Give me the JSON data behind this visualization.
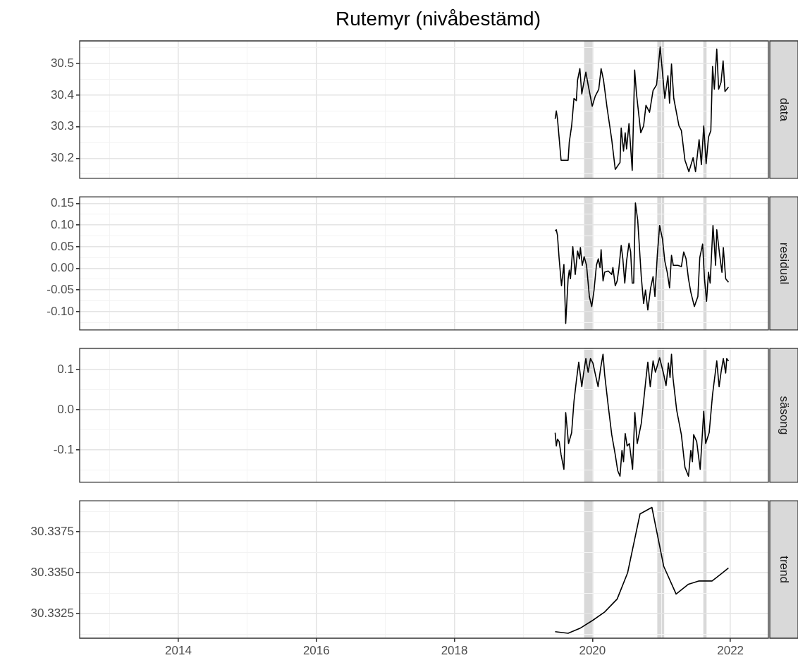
{
  "chart_data": [
    {
      "type": "line",
      "title": "Rutemyr (nivåbestämd)",
      "y2label": "data",
      "marker": "none",
      "grid": true,
      "tick_labels": "y",
      "xlim": [
        2012.57,
        2022.55
      ],
      "xticks": [
        {
          "value": 2013,
          "label": null
        },
        2014,
        {
          "value": 2015,
          "label": null
        },
        2016,
        {
          "value": 2017,
          "label": null
        },
        2018,
        {
          "value": 2019,
          "label": null
        },
        2020,
        {
          "value": 2021,
          "label": null
        },
        2022
      ],
      "ylim": [
        30.137,
        30.572
      ],
      "yticks": [
        {
          "value": 30.15,
          "label": null
        },
        30.2,
        {
          "value": 30.25,
          "label": null
        },
        30.3,
        {
          "value": 30.35,
          "label": null
        },
        30.4,
        {
          "value": 30.45,
          "label": null
        },
        30.5,
        {
          "value": 30.55,
          "label": null
        }
      ],
      "bands": [
        {
          "axis": "x",
          "from": 2019.88,
          "to": 2020.01,
          "color": "#d9d9d9"
        },
        {
          "axis": "x",
          "from": 2020.94,
          "to": 2021.04,
          "color": "#d9d9d9"
        },
        {
          "axis": "x",
          "from": 2021.607,
          "to": 2021.654,
          "color": "#d9d9d9"
        }
      ],
      "series": [
        {
          "color": "#000000",
          "x": [
            2019.46,
            2019.477,
            2019.494,
            2019.546,
            2019.648,
            2019.665,
            2019.699,
            2019.733,
            2019.767,
            2019.785,
            2019.818,
            2019.846,
            2019.87,
            2019.905,
            2019.938,
            2019.997,
            2020.041,
            2020.092,
            2020.126,
            2020.161,
            2020.212,
            2020.28,
            2020.331,
            2020.4,
            2020.417,
            2020.451,
            2020.475,
            2020.495,
            2020.53,
            2020.577,
            2020.612,
            2020.639,
            2020.701,
            2020.742,
            2020.776,
            2020.828,
            2020.879,
            2020.93,
            2020.982,
            2021.049,
            2021.094,
            2021.118,
            2021.146,
            2021.179,
            2021.254,
            2021.289,
            2021.341,
            2021.398,
            2021.459,
            2021.494,
            2021.546,
            2021.579,
            2021.613,
            2021.648,
            2021.682,
            2021.716,
            2021.741,
            2021.767,
            2021.802,
            2021.829,
            2021.864,
            2021.894,
            2021.921,
            2021.972
          ],
          "values": [
            30.325,
            30.35,
            30.325,
            30.194,
            30.194,
            30.252,
            30.303,
            30.39,
            30.383,
            30.448,
            30.484,
            30.404,
            30.433,
            30.473,
            30.433,
            30.365,
            30.397,
            30.419,
            30.484,
            30.448,
            30.361,
            30.259,
            30.165,
            30.187,
            30.296,
            30.223,
            30.281,
            30.23,
            30.31,
            30.162,
            30.48,
            30.404,
            30.281,
            30.303,
            30.368,
            30.346,
            30.415,
            30.433,
            30.553,
            30.39,
            30.462,
            30.375,
            30.499,
            30.39,
            30.303,
            30.288,
            30.194,
            30.158,
            30.202,
            30.158,
            30.259,
            30.18,
            30.303,
            30.183,
            30.267,
            30.288,
            30.491,
            30.419,
            30.546,
            30.419,
            30.441,
            30.509,
            30.412,
            30.426
          ]
        }
      ]
    },
    {
      "type": "line",
      "y2label": "residual",
      "marker": "none",
      "grid": true,
      "tick_labels": "y",
      "xlim": [
        2012.57,
        2022.55
      ],
      "xticks": [
        {
          "value": 2013,
          "label": null
        },
        2014,
        {
          "value": 2015,
          "label": null
        },
        2016,
        {
          "value": 2017,
          "label": null
        },
        2018,
        {
          "value": 2019,
          "label": null
        },
        2020,
        {
          "value": 2021,
          "label": null
        },
        2022
      ],
      "ylim": [
        -0.142,
        0.165
      ],
      "yticks": [
        {
          "value": -0.125,
          "label": null
        },
        {
          "value": -0.1,
          "label": "-0.10"
        },
        {
          "value": -0.075,
          "label": null
        },
        {
          "value": -0.05,
          "label": "-0.05"
        },
        {
          "value": -0.025,
          "label": null
        },
        {
          "value": 0,
          "label": "0.00"
        },
        {
          "value": 0.025,
          "label": null
        },
        {
          "value": 0.05,
          "label": "0.05"
        },
        {
          "value": 0.075,
          "label": null
        },
        {
          "value": 0.1,
          "label": "0.10"
        },
        {
          "value": 0.125,
          "label": null
        },
        0.15
      ],
      "bands": [
        {
          "axis": "x",
          "from": 2019.88,
          "to": 2020.01,
          "color": "#d9d9d9"
        },
        {
          "axis": "x",
          "from": 2020.94,
          "to": 2021.04,
          "color": "#d9d9d9"
        },
        {
          "axis": "x",
          "from": 2021.607,
          "to": 2021.654,
          "color": "#d9d9d9"
        }
      ],
      "series": [
        {
          "color": "#000000",
          "x": [
            2019.46,
            2019.477,
            2019.494,
            2019.518,
            2019.552,
            2019.587,
            2019.613,
            2019.648,
            2019.665,
            2019.682,
            2019.716,
            2019.751,
            2019.785,
            2019.812,
            2019.826,
            2019.853,
            2019.88,
            2019.915,
            2019.956,
            2019.99,
            2020.024,
            2020.058,
            2020.085,
            2020.11,
            2020.126,
            2020.154,
            2020.177,
            2020.229,
            2020.28,
            2020.297,
            2020.331,
            2020.359,
            2020.383,
            2020.417,
            2020.441,
            2020.469,
            2020.495,
            2020.53,
            2020.554,
            2020.577,
            2020.598,
            2020.623,
            2020.656,
            2020.708,
            2020.742,
            2020.769,
            2020.803,
            2020.844,
            2020.879,
            2020.906,
            2020.941,
            2020.974,
            2021.015,
            2021.049,
            2021.084,
            2021.118,
            2021.146,
            2021.172,
            2021.238,
            2021.289,
            2021.323,
            2021.357,
            2021.392,
            2021.426,
            2021.477,
            2021.528,
            2021.556,
            2021.597,
            2021.624,
            2021.654,
            2021.682,
            2021.706,
            2021.747,
            2021.767,
            2021.785,
            2021.802,
            2021.843,
            2021.877,
            2021.897,
            2021.931,
            2021.972
          ],
          "values": [
            0.086,
            0.089,
            0.076,
            0.022,
            -0.04,
            0.009,
            -0.127,
            -0.024,
            -0.004,
            -0.024,
            0.05,
            -0.014,
            0.04,
            0.022,
            0.048,
            0.007,
            0.027,
            0.007,
            -0.065,
            -0.088,
            -0.05,
            0.007,
            0.022,
            0.002,
            0.043,
            -0.029,
            -0.009,
            -0.006,
            -0.014,
            0.002,
            -0.04,
            -0.029,
            -0.001,
            0.053,
            0.022,
            -0.034,
            0.017,
            0.058,
            0.038,
            -0.034,
            -0.034,
            0.151,
            0.112,
            -0.019,
            -0.081,
            -0.05,
            -0.096,
            -0.045,
            -0.019,
            -0.065,
            0.032,
            0.099,
            0.068,
            0.017,
            -0.009,
            -0.045,
            0.03,
            0.007,
            0.007,
            0.004,
            0.038,
            0.022,
            -0.024,
            -0.055,
            -0.088,
            -0.065,
            0.025,
            0.056,
            -0.024,
            -0.076,
            -0.009,
            -0.034,
            0.099,
            0.053,
            0.007,
            0.089,
            0.032,
            -0.009,
            0.048,
            -0.024,
            -0.032
          ]
        }
      ]
    },
    {
      "type": "line",
      "y2label": "säsong",
      "marker": "none",
      "grid": true,
      "tick_labels": "y",
      "xlim": [
        2012.57,
        2022.55
      ],
      "xticks": [
        {
          "value": 2013,
          "label": null
        },
        2014,
        {
          "value": 2015,
          "label": null
        },
        2016,
        {
          "value": 2017,
          "label": null
        },
        2018,
        {
          "value": 2019,
          "label": null
        },
        2020,
        {
          "value": 2021,
          "label": null
        },
        2022
      ],
      "ylim": [
        -0.18,
        0.152
      ],
      "yticks": [
        {
          "value": -0.15,
          "label": null
        },
        -0.1,
        {
          "value": -0.05,
          "label": null
        },
        {
          "value": 0,
          "label": "0.0"
        },
        {
          "value": 0.05,
          "label": null
        },
        0.1,
        {
          "value": 0.15,
          "label": null
        }
      ],
      "bands": [
        {
          "axis": "x",
          "from": 2019.88,
          "to": 2020.01,
          "color": "#d9d9d9"
        },
        {
          "axis": "x",
          "from": 2020.94,
          "to": 2021.04,
          "color": "#d9d9d9"
        },
        {
          "axis": "x",
          "from": 2021.607,
          "to": 2021.654,
          "color": "#d9d9d9"
        }
      ],
      "series": [
        {
          "color": "#000000",
          "x": [
            2019.46,
            2019.477,
            2019.494,
            2019.518,
            2019.546,
            2019.587,
            2019.613,
            2019.654,
            2019.699,
            2019.733,
            2019.767,
            2019.802,
            2019.846,
            2019.87,
            2019.905,
            2019.938,
            2019.972,
            2020.007,
            2020.082,
            2020.12,
            2020.154,
            2020.177,
            2020.229,
            2020.28,
            2020.331,
            2020.366,
            2020.4,
            2020.428,
            2020.451,
            2020.475,
            2020.503,
            2020.536,
            2020.582,
            2020.615,
            2020.649,
            2020.708,
            2020.742,
            2020.776,
            2020.803,
            2020.838,
            2020.879,
            2020.913,
            2020.974,
            2021.033,
            2021.067,
            2021.101,
            2021.125,
            2021.146,
            2021.169,
            2021.221,
            2021.289,
            2021.341,
            2021.392,
            2021.426,
            2021.449,
            2021.467,
            2021.511,
            2021.562,
            2021.613,
            2021.641,
            2021.692,
            2021.741,
            2021.802,
            2021.836,
            2021.864,
            2021.897,
            2021.931,
            2021.946,
            2021.972
          ],
          "values": [
            -0.057,
            -0.09,
            -0.073,
            -0.079,
            -0.112,
            -0.148,
            -0.007,
            -0.084,
            -0.057,
            0.021,
            0.071,
            0.118,
            0.057,
            0.088,
            0.127,
            0.093,
            0.127,
            0.116,
            0.057,
            0.104,
            0.138,
            0.088,
            0.01,
            -0.062,
            -0.112,
            -0.151,
            -0.165,
            -0.101,
            -0.129,
            -0.059,
            -0.09,
            -0.084,
            -0.148,
            -0.007,
            -0.084,
            -0.034,
            0.021,
            0.077,
            0.118,
            0.057,
            0.121,
            0.093,
            0.129,
            0.088,
            0.06,
            0.116,
            0.08,
            0.138,
            0.077,
            -0.001,
            -0.062,
            -0.143,
            -0.165,
            -0.101,
            -0.129,
            -0.062,
            -0.079,
            -0.148,
            -0.004,
            -0.084,
            -0.057,
            0.038,
            0.121,
            0.057,
            0.093,
            0.127,
            0.091,
            0.127,
            0.121
          ]
        }
      ]
    },
    {
      "type": "line",
      "y2label": "trend",
      "marker": "none",
      "grid": true,
      "xlim": [
        2012.57,
        2022.55
      ],
      "xticks": [
        {
          "value": 2013,
          "label": null
        },
        2014,
        {
          "value": 2015,
          "label": null
        },
        2016,
        {
          "value": 2017,
          "label": null
        },
        2018,
        {
          "value": 2019,
          "label": null
        },
        2020,
        {
          "value": 2021,
          "label": null
        },
        2022
      ],
      "ylim": [
        30.331,
        30.3394
      ],
      "yticks": [
        {
          "value": 30.33125,
          "label": null
        },
        30.3325,
        {
          "value": 30.33375,
          "label": null
        },
        {
          "value": 30.335,
          "label": "30.3350"
        },
        {
          "value": 30.33625,
          "label": null
        },
        30.3375,
        {
          "value": 30.33875,
          "label": null
        }
      ],
      "bands": [
        {
          "axis": "x",
          "from": 2019.88,
          "to": 2020.01,
          "color": "#d9d9d9"
        },
        {
          "axis": "x",
          "from": 2020.94,
          "to": 2021.04,
          "color": "#d9d9d9"
        },
        {
          "axis": "x",
          "from": 2021.607,
          "to": 2021.654,
          "color": "#d9d9d9"
        }
      ],
      "series": [
        {
          "color": "#000000",
          "x": [
            2019.46,
            2019.648,
            2019.818,
            2020.007,
            2020.177,
            2020.359,
            2020.51,
            2020.69,
            2020.862,
            2021.033,
            2021.213,
            2021.392,
            2021.546,
            2021.733,
            2021.887,
            2021.972
          ],
          "values": [
            30.3314,
            30.3313,
            30.3316,
            30.3321,
            30.3326,
            30.3334,
            30.335,
            30.3386,
            30.339,
            30.3354,
            30.3337,
            30.3343,
            30.3345,
            30.3345,
            30.335,
            30.3353
          ]
        }
      ]
    }
  ]
}
